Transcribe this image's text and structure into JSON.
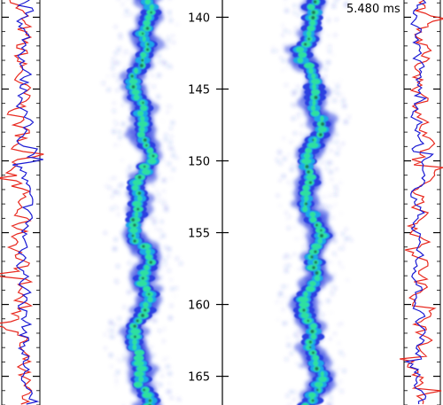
{
  "time_stamp": "5.480 ms",
  "axis": {
    "ticks": [
      {
        "value": 140,
        "label": "140"
      },
      {
        "value": 145,
        "label": "145"
      },
      {
        "value": 150,
        "label": "150"
      },
      {
        "value": 155,
        "label": "155"
      },
      {
        "value": 160,
        "label": "160"
      },
      {
        "value": 165,
        "label": "165"
      }
    ],
    "range": [
      138.8,
      167.0
    ]
  },
  "panels": [
    {
      "id": "left-jet"
    },
    {
      "id": "right-jet"
    }
  ],
  "profile_traces": [
    {
      "side": "left",
      "series": [
        {
          "color": "#e8281e"
        },
        {
          "color": "#1a1ad4"
        }
      ]
    },
    {
      "side": "right",
      "series": [
        {
          "color": "#e8281e"
        },
        {
          "color": "#1a1ad4"
        }
      ]
    }
  ],
  "colors": {
    "outer_fringe": "#2c3fe0",
    "mid_layer": "#1ea7e8",
    "core": "#2ee0a0",
    "hot_core": "#1f7a5a",
    "axis": "#000000"
  }
}
